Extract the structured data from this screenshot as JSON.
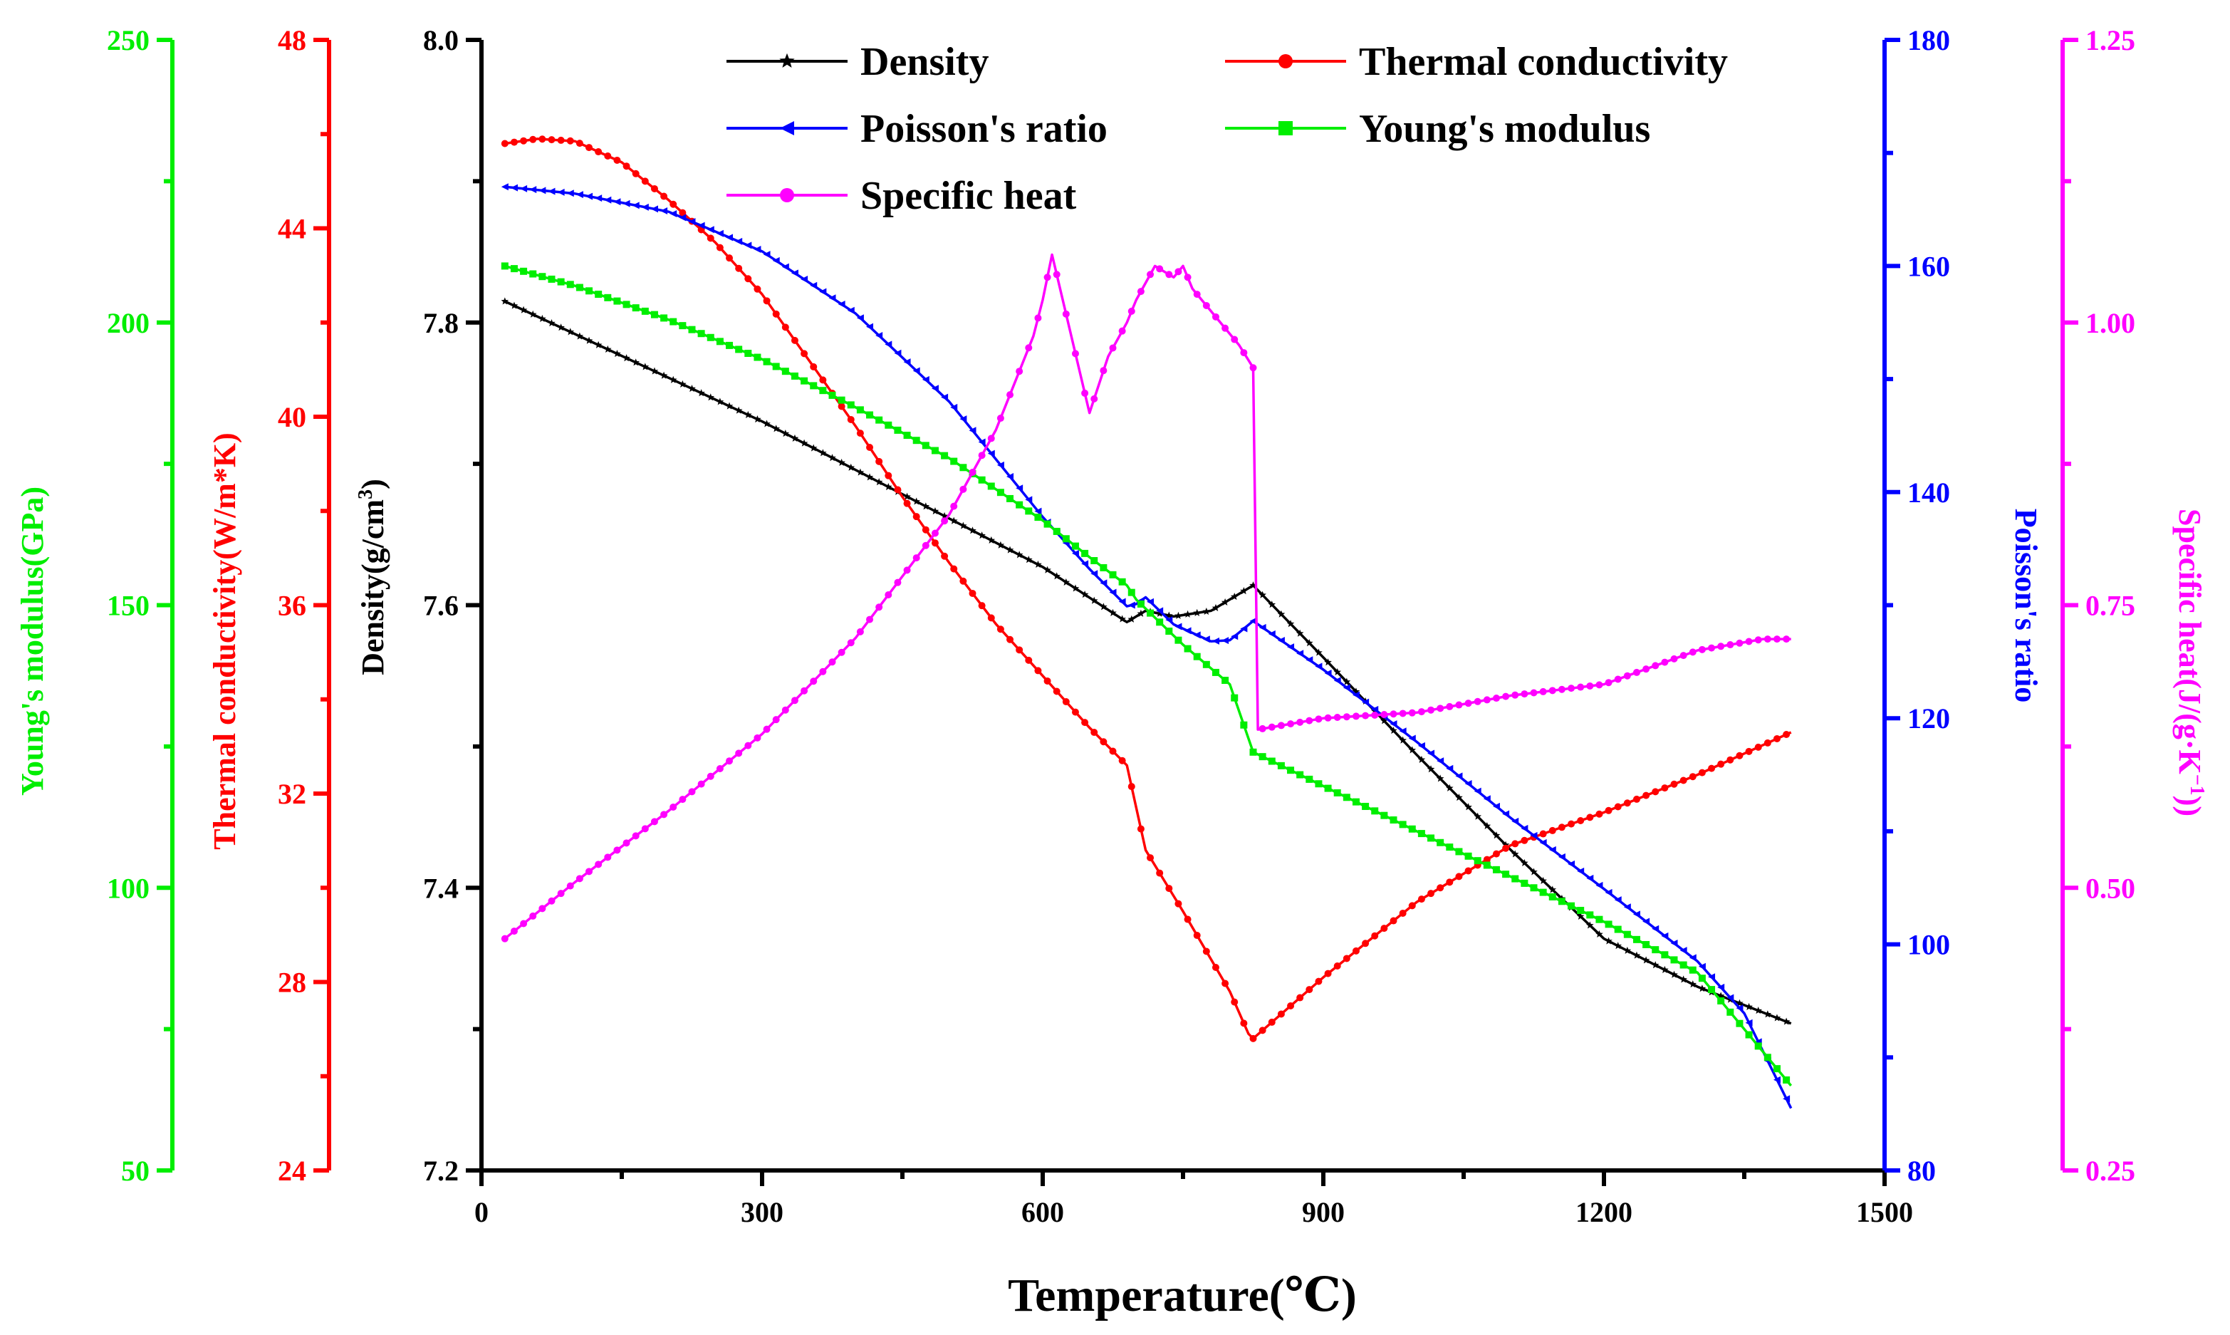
{
  "chart_data": {
    "type": "line",
    "xlabel": "Temperature(℃)",
    "xlim": [
      0,
      1500
    ],
    "xticks": [
      0,
      300,
      600,
      900,
      1200,
      1500
    ],
    "axes": {
      "youngs": {
        "label": "Young's modulus(GPa)",
        "color": "#00ee00",
        "lim": [
          50,
          250
        ],
        "ticks": [
          50,
          100,
          150,
          200,
          250
        ],
        "tick_labels": [
          "50",
          "100",
          "150",
          "200",
          "250"
        ]
      },
      "thermal": {
        "label": "Thermal conductivity(W/m*K)",
        "color": "#ff0000",
        "lim": [
          24,
          48
        ],
        "ticks": [
          24,
          28,
          32,
          36,
          40,
          44,
          48
        ],
        "tick_labels": [
          "24",
          "28",
          "32",
          "36",
          "40",
          "44",
          "48"
        ]
      },
      "density": {
        "label": "Density(g/cm",
        "label_sup": "3",
        "label_close": ")",
        "color": "#000000",
        "lim": [
          7.2,
          8.0
        ],
        "ticks": [
          7.2,
          7.4,
          7.6,
          7.8,
          8.0
        ],
        "tick_labels": [
          "7.2",
          "7.4",
          "7.6",
          "7.8",
          "8.0"
        ]
      },
      "poisson": {
        "label": "Poisson's ratio",
        "color": "#0000ff",
        "lim": [
          80,
          180
        ],
        "ticks": [
          80,
          100,
          120,
          140,
          160,
          180
        ],
        "tick_labels": [
          "80",
          "100",
          "120",
          "140",
          "160",
          "180"
        ]
      },
      "specific": {
        "label": "Specific heat(J/(g·K",
        "label_sup": "−1",
        "label_close": "))",
        "color": "#ff00ff",
        "lim": [
          0.25,
          1.25
        ],
        "ticks": [
          0.25,
          0.5,
          0.75,
          1.0,
          1.25
        ],
        "tick_labels": [
          "0.25",
          "0.50",
          "0.75",
          "1.00",
          "1.25"
        ]
      }
    },
    "series": [
      {
        "name": "Density",
        "axis": "density",
        "color": "#000000",
        "marker": "star",
        "x": [
          25,
          300,
          600,
          690,
          710,
          740,
          780,
          825,
          900,
          1000,
          1100,
          1200,
          1300,
          1400
        ],
        "y": [
          7.815,
          7.73,
          7.627,
          7.588,
          7.596,
          7.592,
          7.596,
          7.614,
          7.563,
          7.494,
          7.427,
          7.364,
          7.33,
          7.304
        ]
      },
      {
        "name": "Thermal conductivity",
        "axis": "thermal",
        "color": "#ff0000",
        "marker": "circle",
        "x": [
          25,
          60,
          100,
          150,
          200,
          250,
          300,
          350,
          400,
          450,
          500,
          550,
          600,
          650,
          690,
          700,
          710,
          750,
          800,
          820,
          825,
          900,
          1000,
          1100,
          1200,
          1300,
          1400
        ],
        "y": [
          45.8,
          45.9,
          45.85,
          45.4,
          44.6,
          43.7,
          42.6,
          41.2,
          39.8,
          38.3,
          36.9,
          35.6,
          34.5,
          33.4,
          32.6,
          31.7,
          30.8,
          29.5,
          27.8,
          26.9,
          26.8,
          28.1,
          29.7,
          30.9,
          31.6,
          32.4,
          33.3
        ]
      },
      {
        "name": "Poisson's ratio",
        "axis": "poisson",
        "color": "#0000ff",
        "marker": "triangle-left",
        "x": [
          25,
          100,
          200,
          300,
          400,
          500,
          600,
          650,
          690,
          700,
          710,
          740,
          780,
          800,
          825,
          900,
          1000,
          1100,
          1200,
          1300,
          1350,
          1400
        ],
        "y": [
          167,
          166.4,
          164.8,
          161.3,
          155.8,
          148,
          137.8,
          133.2,
          129.9,
          130.1,
          130.7,
          128.3,
          126.8,
          126.9,
          128.6,
          124.3,
          117.9,
          111.2,
          104.9,
          98.5,
          93.9,
          85.5
        ]
      },
      {
        "name": "Young's modulus",
        "axis": "youngs",
        "color": "#00ee00",
        "marker": "square",
        "x": [
          25,
          100,
          200,
          300,
          400,
          500,
          600,
          650,
          690,
          700,
          750,
          800,
          825,
          900,
          1000,
          1100,
          1200,
          1300,
          1400
        ],
        "y": [
          210,
          206.5,
          200.5,
          193.5,
          185,
          176,
          165,
          158.5,
          153.5,
          151,
          143,
          136,
          124,
          118,
          110,
          102,
          94,
          85,
          65
        ]
      },
      {
        "name": "Specific heat",
        "axis": "specific",
        "color": "#ff00ff",
        "marker": "circle",
        "x": [
          25,
          100,
          200,
          300,
          400,
          500,
          550,
          590,
          600,
          610,
          650,
          670,
          690,
          700,
          720,
          740,
          750,
          760,
          790,
          810,
          825,
          830,
          900,
          1000,
          1100,
          1200,
          1300,
          1370,
          1400
        ],
        "y": [
          0.455,
          0.505,
          0.568,
          0.636,
          0.721,
          0.83,
          0.905,
          0.988,
          1.02,
          1.06,
          0.92,
          0.97,
          1.0,
          1.02,
          1.05,
          1.04,
          1.05,
          1.03,
          1.0,
          0.98,
          0.96,
          0.64,
          0.65,
          0.655,
          0.67,
          0.68,
          0.71,
          0.72,
          0.72
        ]
      }
    ]
  }
}
